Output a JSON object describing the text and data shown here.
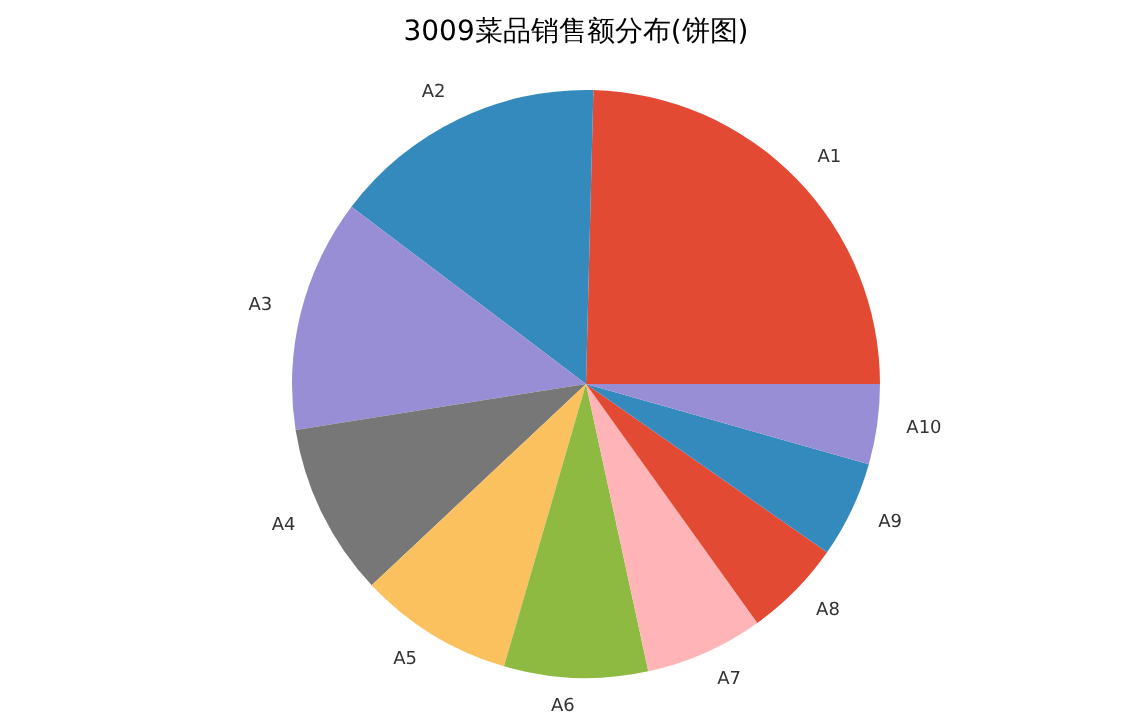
{
  "chart_data": {
    "type": "pie",
    "title": "3009菜品销售额分布(饼图)",
    "categories": [
      "A1",
      "A2",
      "A3",
      "A4",
      "A5",
      "A6",
      "A7",
      "A8",
      "A9",
      "A10"
    ],
    "values": [
      24.6,
      15.1,
      12.8,
      9.5,
      8.5,
      7.9,
      6.5,
      5.4,
      5.3,
      4.4
    ],
    "colors": [
      "#e24a33",
      "#348abd",
      "#988ed5",
      "#777777",
      "#fbc15e",
      "#8eba42",
      "#ffb5b8",
      "#e24a33",
      "#348abd",
      "#988ed5"
    ]
  }
}
